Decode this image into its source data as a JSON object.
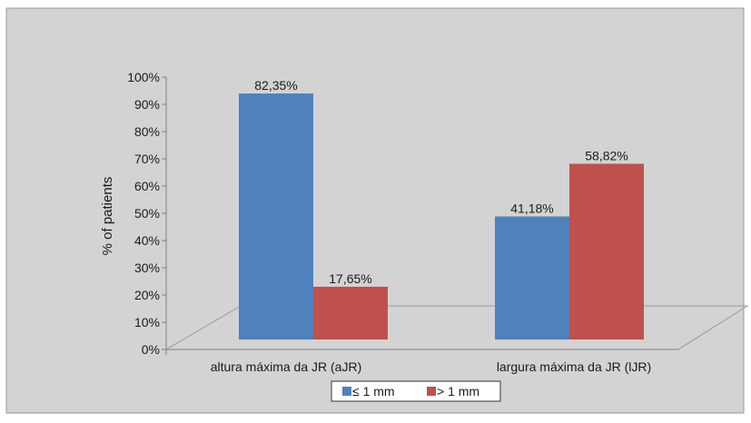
{
  "chart_data": {
    "type": "bar",
    "categories": [
      "altura máxima da JR (aJR)",
      "largura máxima da JR (lJR)"
    ],
    "series": [
      {
        "name": "≤ 1 mm",
        "values": [
          82.35,
          41.18
        ],
        "labels": [
          "82,35%",
          "41,18%"
        ],
        "color": "#4f81bd"
      },
      {
        "name": "> 1 mm",
        "values": [
          17.65,
          58.82
        ],
        "labels": [
          "17,65%",
          "58,82%"
        ],
        "color": "#c0504d"
      }
    ],
    "ylabel": "% of patients",
    "xlabel": "",
    "ylim": [
      0,
      100
    ],
    "yticks": [
      "0%",
      "10%",
      "20%",
      "30%",
      "40%",
      "50%",
      "60%",
      "70%",
      "80%",
      "90%",
      "100%"
    ],
    "legend_position": "bottom",
    "background_color": "#d3d3d3",
    "grid": false,
    "style": "3d-floor"
  }
}
